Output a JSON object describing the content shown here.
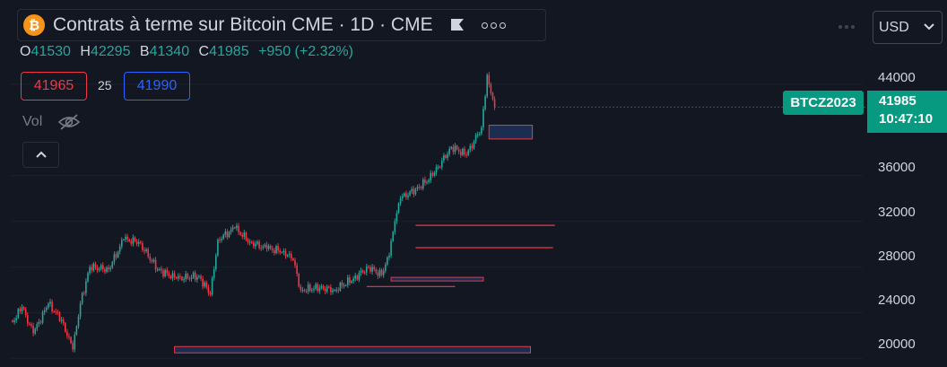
{
  "header": {
    "coin_glyph": "₿",
    "symbol_title": "Contrats à terme sur Bitcoin CME · 1D · CME",
    "icons": [
      "bitcoin-icon",
      "flag-icon",
      "more-options-icon"
    ]
  },
  "ohlc": {
    "open_label": "O",
    "open": "41530",
    "high_label": "H",
    "high": "42295",
    "low_label": "B",
    "low": "41340",
    "close_label": "C",
    "close": "41985",
    "change": "+950 (+2.32%)"
  },
  "trade": {
    "bid": "41965",
    "spread": "25",
    "ask": "41990"
  },
  "volume": {
    "label": "Vol",
    "icon": "eye-crossed-icon"
  },
  "toolbar": {
    "currency": "USD",
    "collapse_icon": "chevron-up-icon",
    "menu_icon": "dots-icon"
  },
  "price_axis": {
    "ticks": [
      "44000",
      "36000",
      "32000",
      "28000",
      "24000",
      "20000"
    ],
    "symbol_tag": "BTCZ2023",
    "last_price": "41985",
    "countdown": "10:47:10"
  },
  "colors": {
    "background": "#131722",
    "up": "#26a69a",
    "down": "#f23645",
    "tag": "#089981",
    "zone_border": "#f23645",
    "zone_fill": "#1f3560"
  },
  "chart_data": {
    "type": "candlestick",
    "ylim": [
      19500,
      46800
    ],
    "y_ticks": [
      20000,
      24000,
      28000,
      32000,
      36000,
      44000
    ],
    "segments": [
      {
        "start": 23200,
        "end": 23200,
        "n": 1
      },
      {
        "start": 23200,
        "end": 24500,
        "n": 5
      },
      {
        "start": 24500,
        "end": 22200,
        "n": 6
      },
      {
        "start": 22200,
        "end": 24800,
        "n": 8
      },
      {
        "start": 24800,
        "end": 23400,
        "n": 7
      },
      {
        "start": 23400,
        "end": 20800,
        "n": 6
      },
      {
        "start": 20800,
        "end": 24800,
        "n": 4
      },
      {
        "start": 24800,
        "end": 28000,
        "n": 5
      },
      {
        "start": 28000,
        "end": 27800,
        "n": 10
      },
      {
        "start": 27800,
        "end": 30400,
        "n": 8
      },
      {
        "start": 30400,
        "end": 30200,
        "n": 8
      },
      {
        "start": 30200,
        "end": 27800,
        "n": 10
      },
      {
        "start": 27800,
        "end": 27000,
        "n": 10
      },
      {
        "start": 27000,
        "end": 27200,
        "n": 12
      },
      {
        "start": 27200,
        "end": 25600,
        "n": 6
      },
      {
        "start": 25600,
        "end": 30400,
        "n": 4
      },
      {
        "start": 30400,
        "end": 31400,
        "n": 9
      },
      {
        "start": 31400,
        "end": 30200,
        "n": 8
      },
      {
        "start": 30200,
        "end": 29600,
        "n": 9
      },
      {
        "start": 29600,
        "end": 29400,
        "n": 9
      },
      {
        "start": 29400,
        "end": 28600,
        "n": 5
      },
      {
        "start": 28600,
        "end": 26000,
        "n": 4
      },
      {
        "start": 26000,
        "end": 26200,
        "n": 10
      },
      {
        "start": 26200,
        "end": 26000,
        "n": 8
      },
      {
        "start": 26000,
        "end": 27000,
        "n": 10
      },
      {
        "start": 27000,
        "end": 28000,
        "n": 8
      },
      {
        "start": 28000,
        "end": 27300,
        "n": 7
      },
      {
        "start": 27300,
        "end": 29000,
        "n": 4
      },
      {
        "start": 29000,
        "end": 32000,
        "n": 3
      },
      {
        "start": 32000,
        "end": 34000,
        "n": 3
      },
      {
        "start": 34000,
        "end": 35000,
        "n": 10
      },
      {
        "start": 35000,
        "end": 36000,
        "n": 7
      },
      {
        "start": 36000,
        "end": 38500,
        "n": 10
      },
      {
        "start": 38500,
        "end": 37800,
        "n": 8
      },
      {
        "start": 37800,
        "end": 40200,
        "n": 8
      },
      {
        "start": 40200,
        "end": 44800,
        "n": 3
      },
      {
        "start": 44800,
        "end": 43200,
        "n": 2
      },
      {
        "start": 43200,
        "end": 41985,
        "n": 2
      }
    ],
    "zones": [
      {
        "from_bar": 86,
        "to_bar": 275,
        "top": 21050,
        "bottom": 20500,
        "style": "box"
      },
      {
        "from_bar": 214,
        "to_bar": 288,
        "top": 31650,
        "bottom": 31650,
        "style": "line"
      },
      {
        "from_bar": 214,
        "to_bar": 287,
        "top": 29700,
        "bottom": 29700,
        "style": "line"
      },
      {
        "from_bar": 201,
        "to_bar": 250,
        "top": 27100,
        "bottom": 26900,
        "style": "box"
      },
      {
        "from_bar": 188,
        "to_bar": 235,
        "top": 26300,
        "bottom": 26300,
        "style": "line"
      },
      {
        "from_bar": 253,
        "to_bar": 276,
        "top": 40400,
        "bottom": 39200,
        "style": "box"
      }
    ],
    "last_price": 41985
  }
}
